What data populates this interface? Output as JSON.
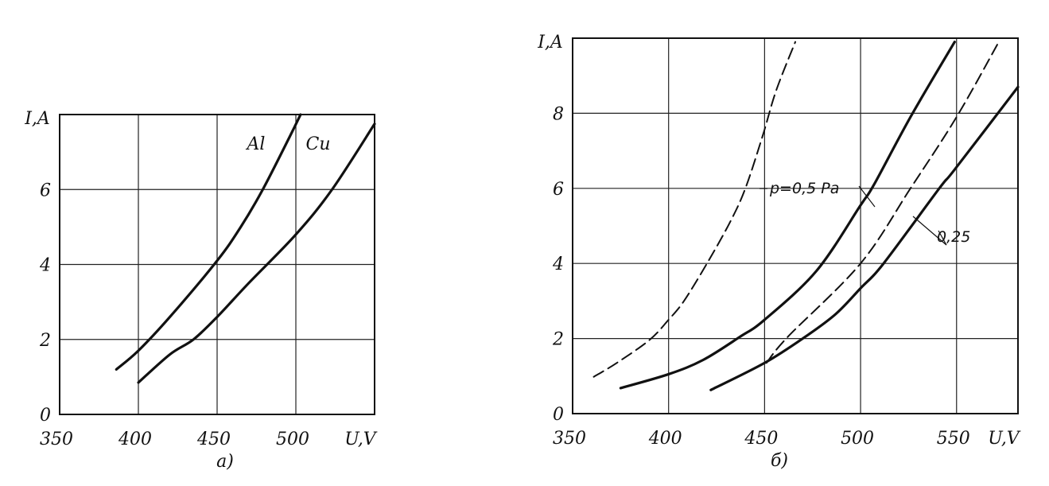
{
  "chart_data": [
    {
      "type": "line",
      "panel_label": "а)",
      "xlabel": "U,V",
      "ylabel": "I,A",
      "xlim": [
        350,
        550
      ],
      "ylim": [
        0,
        8
      ],
      "x_ticks": [
        350,
        400,
        450,
        500
      ],
      "y_ticks": [
        0,
        2,
        4,
        6
      ],
      "grid": true,
      "series": [
        {
          "name": "Al",
          "style": "solid",
          "x": [
            386,
            400,
            420,
            450,
            465,
            479,
            496,
            503
          ],
          "y": [
            1.2,
            1.7,
            2.6,
            4.1,
            5.0,
            6.0,
            7.4,
            8.0
          ]
        },
        {
          "name": "Cu",
          "style": "solid",
          "x": [
            400,
            420,
            435,
            450,
            470,
            500,
            523,
            550
          ],
          "y": [
            0.85,
            1.6,
            2.0,
            2.6,
            3.5,
            4.8,
            6.0,
            7.75
          ]
        }
      ]
    },
    {
      "type": "line",
      "panel_label": "б)",
      "xlabel": "U,V",
      "ylabel": "I,A",
      "xlim": [
        350,
        582
      ],
      "ylim": [
        0,
        10
      ],
      "x_ticks": [
        350,
        400,
        450,
        500,
        550
      ],
      "y_ticks": [
        0,
        2,
        4,
        6,
        8
      ],
      "grid": true,
      "annotations": [
        "p=0,5 Pa",
        "0,25"
      ],
      "series": [
        {
          "style": "dashed",
          "pressure": "0,5",
          "x": [
            361,
            373,
            390,
            400,
            408,
            420,
            432,
            440,
            449,
            456,
            466
          ],
          "y": [
            0.98,
            1.35,
            1.96,
            2.5,
            3.0,
            4.0,
            5.1,
            6.0,
            7.4,
            8.6,
            9.9
          ]
        },
        {
          "style": "solid",
          "pressure": "0,5",
          "x": [
            375,
            400,
            418,
            437,
            450,
            477,
            500,
            507,
            526,
            549
          ],
          "y": [
            0.68,
            1.05,
            1.43,
            2.04,
            2.5,
            3.8,
            5.55,
            6.1,
            7.9,
            9.9
          ]
        },
        {
          "style": "dashed",
          "pressure": "0,25",
          "x": [
            451,
            462,
            500,
            526,
            550,
            572
          ],
          "y": [
            1.35,
            2.04,
            4.0,
            6.0,
            7.9,
            9.9
          ]
        },
        {
          "style": "solid",
          "pressure": "0,25",
          "x": [
            422,
            450,
            471,
            487,
            500,
            512,
            541,
            549,
            582
          ],
          "y": [
            0.63,
            1.35,
            2.04,
            2.65,
            3.34,
            4.0,
            6.0,
            6.5,
            8.7
          ]
        }
      ]
    }
  ]
}
